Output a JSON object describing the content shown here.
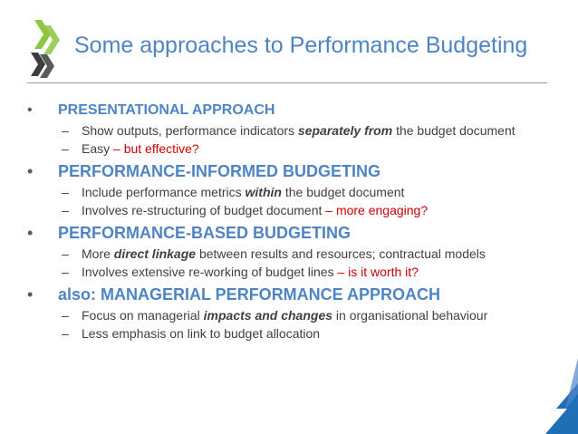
{
  "slide": {
    "title": "Some approaches to Performance Budgeting",
    "sections": [
      {
        "bullet": "•",
        "heading": "PRESENTATIONAL APPROACH",
        "items": [
          {
            "dash": "–",
            "parts": [
              "Show outputs, performance indicators ",
              "separately from",
              " the budget document"
            ]
          },
          {
            "dash": "–",
            "parts": [
              "Easy ",
              "– but effective?"
            ]
          }
        ]
      },
      {
        "bullet": "•",
        "heading": "PERFORMANCE-INFORMED BUDGETING",
        "items": [
          {
            "dash": "–",
            "parts": [
              "Include performance metrics ",
              "within",
              " the budget document"
            ]
          },
          {
            "dash": "–",
            "parts": [
              "Involves re-structuring of budget document ",
              "– more engaging?"
            ]
          }
        ]
      },
      {
        "bullet": "•",
        "heading": "PERFORMANCE-BASED BUDGETING",
        "items": [
          {
            "dash": "–",
            "parts": [
              "More ",
              "direct linkage",
              " between results and resources;  contractual models"
            ]
          },
          {
            "dash": "–",
            "parts": [
              "Involves extensive re-working of budget lines ",
              "– is it worth it?"
            ]
          }
        ]
      },
      {
        "bullet": "•",
        "heading": "also:  MANAGERIAL PERFORMANCE APPROACH",
        "items": [
          {
            "dash": "–",
            "parts": [
              "Focus on managerial ",
              "impacts and changes",
              " in organisational behaviour"
            ]
          },
          {
            "dash": "–",
            "parts": [
              "Less emphasis on link to budget allocation"
            ]
          }
        ]
      }
    ]
  },
  "colors": {
    "accent_blue": "#4f84c4",
    "highlight_red": "#cc0000",
    "logo_green": "#8dc63f",
    "logo_dark": "#3d3d3d",
    "corner_blue": "#1f6fb7"
  }
}
